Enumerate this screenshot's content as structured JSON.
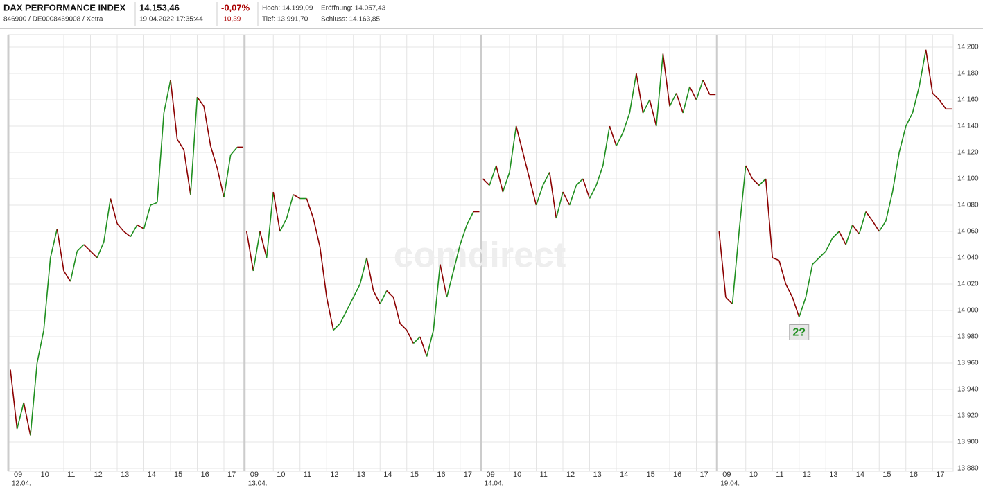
{
  "header": {
    "name": "DAX PERFORMANCE INDEX",
    "ids": "846900 / DE0008469008 / Xetra",
    "price": "14.153,46",
    "timestamp": "19.04.2022 17:35:44",
    "change_pct": "-0,07%",
    "change_abs": "-10,39",
    "high": "Hoch: 14.199,09",
    "open": "Eröffnung: 14.057,43",
    "low": "Tief: 13.991,70",
    "close": "Schluss: 14.163,85"
  },
  "chart_data": {
    "type": "line",
    "watermark": "comdirect",
    "annotation": "2?",
    "up_color": "#1f8f1f",
    "down_color": "#8b0000",
    "grid": true,
    "ylim": [
      13880,
      14200
    ],
    "yticks": [
      {
        "value": 13880,
        "label": "13.880"
      },
      {
        "value": 13900,
        "label": "13.900"
      },
      {
        "value": 13920,
        "label": "13.920"
      },
      {
        "value": 13940,
        "label": "13.940"
      },
      {
        "value": 13960,
        "label": "13.960"
      },
      {
        "value": 13980,
        "label": "13.980"
      },
      {
        "value": 14000,
        "label": "14.000"
      },
      {
        "value": 14020,
        "label": "14.020"
      },
      {
        "value": 14040,
        "label": "14.040"
      },
      {
        "value": 14060,
        "label": "14.060"
      },
      {
        "value": 14080,
        "label": "14.080"
      },
      {
        "value": 14100,
        "label": "14.100"
      },
      {
        "value": 14120,
        "label": "14.120"
      },
      {
        "value": 14140,
        "label": "14.140"
      },
      {
        "value": 14160,
        "label": "14.160"
      },
      {
        "value": 14180,
        "label": "14.180"
      },
      {
        "value": 14200,
        "label": "14.200"
      }
    ],
    "hours": [
      "09",
      "10",
      "11",
      "12",
      "13",
      "14",
      "15",
      "16",
      "17"
    ],
    "days": [
      {
        "date": "12.04.",
        "values": [
          13955,
          13910,
          13930,
          13905,
          13960,
          13985,
          14040,
          14062,
          14030,
          14022,
          14045,
          14050,
          14045,
          14040,
          14052,
          14085,
          14066,
          14060,
          14056,
          14065,
          14062,
          14080,
          14082,
          14150,
          14175,
          14130,
          14122,
          14088,
          14162,
          14155,
          14125,
          14108,
          14086,
          14118,
          14124
        ]
      },
      {
        "date": "13.04.",
        "values": [
          14060,
          14030,
          14060,
          14040,
          14090,
          14060,
          14070,
          14088,
          14085,
          14085,
          14070,
          14048,
          14010,
          13985,
          13990,
          14000,
          14010,
          14020,
          14040,
          14015,
          14005,
          14015,
          14010,
          13990,
          13985,
          13975,
          13980,
          13965,
          13985,
          14035,
          14010,
          14030,
          14050,
          14065,
          14075
        ]
      },
      {
        "date": "14.04.",
        "values": [
          14100,
          14095,
          14110,
          14090,
          14105,
          14140,
          14120,
          14100,
          14080,
          14095,
          14105,
          14070,
          14090,
          14080,
          14095,
          14100,
          14085,
          14095,
          14110,
          14140,
          14125,
          14135,
          14150,
          14180,
          14150,
          14160,
          14140,
          14195,
          14155,
          14165,
          14150,
          14170,
          14160,
          14175,
          14164
        ]
      },
      {
        "date": "19.04.",
        "values": [
          14060,
          14010,
          14005,
          14060,
          14110,
          14100,
          14095,
          14100,
          14040,
          14038,
          14020,
          14010,
          13995,
          14010,
          14035,
          14040,
          14045,
          14055,
          14060,
          14050,
          14065,
          14058,
          14075,
          14068,
          14060,
          14068,
          14090,
          14120,
          14140,
          14150,
          14170,
          14198,
          14165,
          14160,
          14153
        ]
      }
    ]
  }
}
